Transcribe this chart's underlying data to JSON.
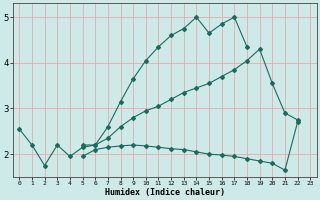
{
  "xlabel": "Humidex (Indice chaleur)",
  "background_color": "#ceeae8",
  "grid_color": "#e8aaaa",
  "line_color": "#1a6b5e",
  "xlim": [
    -0.5,
    23.5
  ],
  "ylim": [
    1.5,
    5.3
  ],
  "xticks": [
    0,
    1,
    2,
    3,
    4,
    5,
    6,
    7,
    8,
    9,
    10,
    11,
    12,
    13,
    14,
    15,
    16,
    17,
    18,
    19,
    20,
    21,
    22,
    23
  ],
  "yticks": [
    2,
    3,
    4,
    5
  ],
  "line1_x": [
    0,
    1,
    2,
    3,
    4,
    5,
    6,
    7,
    8,
    9,
    10,
    11,
    12,
    13,
    14,
    15,
    16,
    17,
    18
  ],
  "line1_y": [
    2.55,
    2.2,
    1.75,
    2.2,
    1.95,
    2.15,
    2.2,
    2.6,
    3.15,
    3.65,
    4.05,
    4.35,
    4.6,
    4.75,
    5.0,
    4.65,
    4.85,
    5.0,
    4.35
  ],
  "line2_x": [
    5,
    6,
    7,
    8,
    9,
    10,
    11,
    12,
    13,
    14,
    15,
    16,
    17,
    18,
    19,
    20,
    21,
    22
  ],
  "line2_y": [
    2.2,
    2.2,
    2.35,
    2.6,
    2.8,
    2.95,
    3.05,
    3.2,
    3.35,
    3.45,
    3.55,
    3.7,
    3.85,
    4.05,
    4.3,
    3.55,
    2.9,
    2.75
  ],
  "line3_x": [
    5,
    6,
    7,
    8,
    9,
    10,
    11,
    12,
    13,
    14,
    15,
    16,
    17,
    18,
    19,
    20,
    21,
    22
  ],
  "line3_y": [
    1.95,
    2.1,
    2.15,
    2.18,
    2.2,
    2.18,
    2.15,
    2.12,
    2.1,
    2.05,
    2.0,
    1.98,
    1.95,
    1.9,
    1.85,
    1.8,
    1.65,
    2.7
  ]
}
